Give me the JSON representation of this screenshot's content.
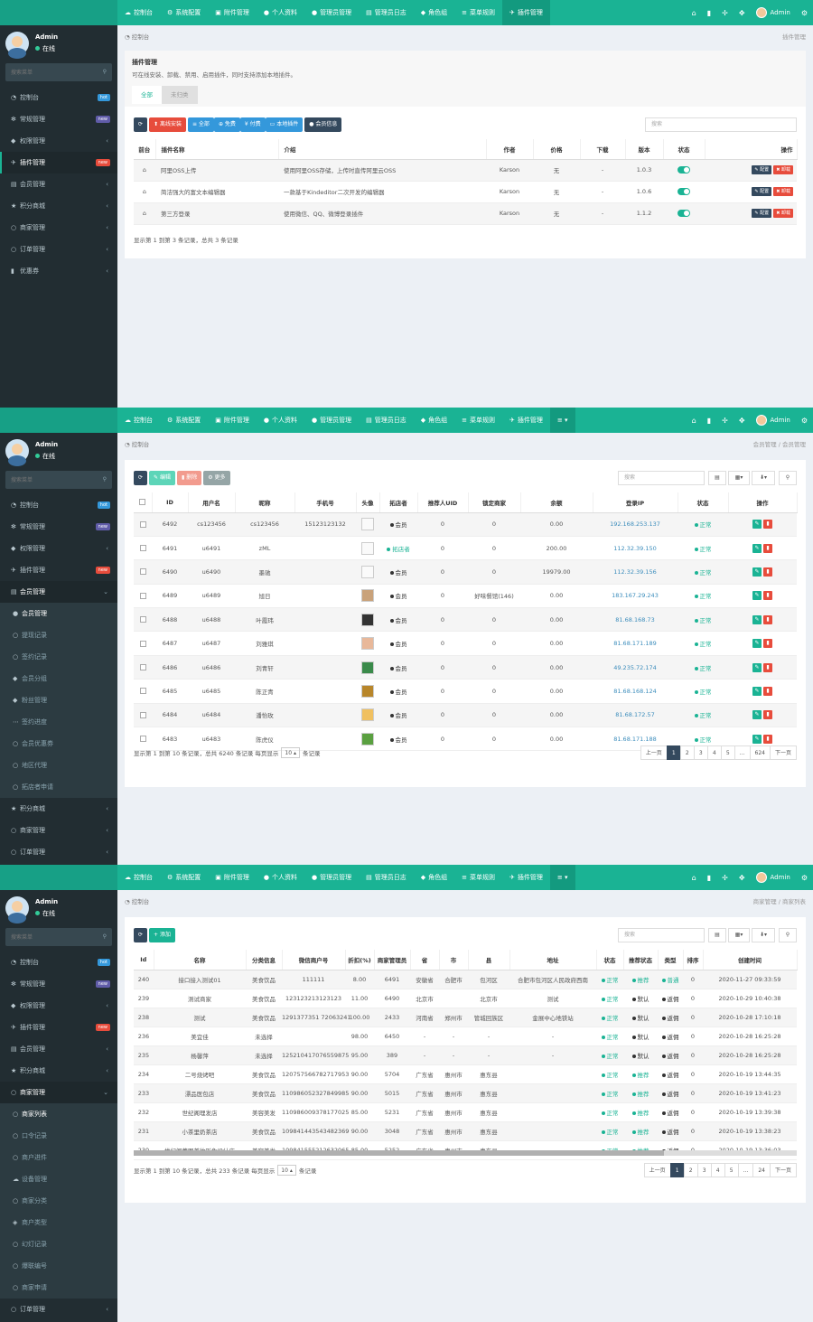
{
  "topnav": [
    {
      "icon": "☁",
      "label": "控制台"
    },
    {
      "icon": "⚙",
      "label": "系统配置"
    },
    {
      "icon": "▣",
      "label": "附件管理"
    },
    {
      "icon": "●",
      "label": "个人资料"
    },
    {
      "icon": "●",
      "label": "管理员管理"
    },
    {
      "icon": "▤",
      "label": "管理员日志"
    },
    {
      "icon": "◆",
      "label": "角色组"
    },
    {
      "icon": "≡",
      "label": "菜单规则"
    },
    {
      "icon": "✈",
      "label": "插件管理"
    }
  ],
  "user": {
    "name": "Admin",
    "status": "在线"
  },
  "sidebar_search_placeholder": "搜索菜单",
  "menu": {
    "console": {
      "label": "控制台",
      "badge": "hot"
    },
    "general": {
      "label": "常规管理",
      "badge": "new"
    },
    "auth": {
      "label": "权限管理"
    },
    "addon": {
      "label": "插件管理",
      "badge": "new"
    },
    "member": {
      "label": "会员管理"
    },
    "points": {
      "label": "积分商城"
    },
    "merchant": {
      "label": "商家管理"
    },
    "order": {
      "label": "订单管理"
    },
    "coupon": {
      "label": "优惠券"
    }
  },
  "member_sub": [
    "会员管理",
    "提现记录",
    "签约记录",
    "会员分组",
    "粉丝管理",
    "签约进度",
    "会员优惠券",
    "地区代理",
    "拓店者申请"
  ],
  "merchant_sub": [
    "商家列表",
    "口令记录",
    "商户进件",
    "设备管理",
    "商家分类",
    "商户类型",
    "幻灯记录",
    "爆联编号",
    "商家申请"
  ],
  "screen1": {
    "breadcrumb": "控制台",
    "breadcrumb_right": "插件管理",
    "title": "插件管理",
    "desc": "可在线安装、卸载、禁用、启用插件，同时支持添加本地插件。",
    "tabs": [
      "全部",
      "未归类"
    ],
    "toolbar": {
      "install": "离线安装",
      "all": "全部",
      "free": "免费",
      "paid": "付费",
      "local": "本地插件",
      "member": "会员信息"
    },
    "search_placeholder": "搜索",
    "headers": [
      "前台",
      "插件名称",
      "介绍",
      "作者",
      "价格",
      "下载",
      "版本",
      "状态",
      "操作"
    ],
    "rows": [
      {
        "name": "阿里OSS上传",
        "intro": "使用阿里OSS存储，上传时直传阿里云OSS",
        "author": "Karson",
        "price": "无",
        "download": "-",
        "version": "1.0.3"
      },
      {
        "name": "简洁强大的富文本编辑器",
        "intro": "一款基于Kindeditor二次开发的编辑器",
        "author": "Karson",
        "price": "无",
        "download": "-",
        "version": "1.0.6"
      },
      {
        "name": "第三方登录",
        "intro": "使用微信、QQ、微博登录插件",
        "author": "Karson",
        "price": "无",
        "download": "-",
        "version": "1.1.2"
      }
    ],
    "config": "配置",
    "uninstall": "卸载",
    "footer": "显示第 1 到第 3 条记录，总共 3 条记录"
  },
  "screen2": {
    "breadcrumb": "控制台",
    "breadcrumb_right": "会员管理 / 会员管理",
    "toolbar": {
      "edit": "编辑",
      "delete": "删除",
      "more": "更多"
    },
    "search_placeholder": "搜索",
    "headers": [
      "",
      "ID",
      "用户名",
      "昵称",
      "手机号",
      "头像",
      "拓店者",
      "推荐人UID",
      "锁定商家",
      "余额",
      "登录IP",
      "状态",
      "操作"
    ],
    "rows": [
      {
        "id": "6492",
        "username": "cs123456",
        "nickname": "cs123456",
        "phone": "15123123132",
        "role": "会员",
        "ref": "0",
        "shop": "0",
        "balance": "0.00",
        "ip": "192.168.253.137",
        "status": "正常"
      },
      {
        "id": "6491",
        "username": "u6491",
        "nickname": "zML",
        "phone": "",
        "role": "拓店者",
        "ref": "0",
        "shop": "0",
        "balance": "200.00",
        "ip": "112.32.39.150",
        "status": "正常"
      },
      {
        "id": "6490",
        "username": "u6490",
        "nickname": "墨驰",
        "phone": "",
        "role": "会员",
        "ref": "0",
        "shop": "0",
        "balance": "19979.00",
        "ip": "112.32.39.156",
        "status": "正常"
      },
      {
        "id": "6489",
        "username": "u6489",
        "nickname": "旭日",
        "phone": "",
        "role": "会员",
        "ref": "0",
        "shop": "好味餐馆(146)",
        "balance": "0.00",
        "ip": "183.167.29.243",
        "status": "正常"
      },
      {
        "id": "6488",
        "username": "u6488",
        "nickname": "叶霞玮",
        "phone": "",
        "role": "会员",
        "ref": "0",
        "shop": "0",
        "balance": "0.00",
        "ip": "81.68.168.73",
        "status": "正常"
      },
      {
        "id": "6487",
        "username": "u6487",
        "nickname": "刘雅琪",
        "phone": "",
        "role": "会员",
        "ref": "0",
        "shop": "0",
        "balance": "0.00",
        "ip": "81.68.171.189",
        "status": "正常"
      },
      {
        "id": "6486",
        "username": "u6486",
        "nickname": "刘青轩",
        "phone": "",
        "role": "会员",
        "ref": "0",
        "shop": "0",
        "balance": "0.00",
        "ip": "49.235.72.174",
        "status": "正常"
      },
      {
        "id": "6485",
        "username": "u6485",
        "nickname": "陈正青",
        "phone": "",
        "role": "会员",
        "ref": "0",
        "shop": "0",
        "balance": "0.00",
        "ip": "81.68.168.124",
        "status": "正常"
      },
      {
        "id": "6484",
        "username": "u6484",
        "nickname": "潘怡玫",
        "phone": "",
        "role": "会员",
        "ref": "0",
        "shop": "0",
        "balance": "0.00",
        "ip": "81.68.172.57",
        "status": "正常"
      },
      {
        "id": "6483",
        "username": "u6483",
        "nickname": "陈虎仪",
        "phone": "",
        "role": "会员",
        "ref": "0",
        "shop": "0",
        "balance": "0.00",
        "ip": "81.68.171.188",
        "status": "正常"
      }
    ],
    "footer_pre": "显示第 1 到第 10 条记录，总共 6240 条记录 每页显示",
    "page_size": "10",
    "footer_post": "条记录",
    "pager": [
      "上一页",
      "1",
      "2",
      "3",
      "4",
      "5",
      "...",
      "624",
      "下一页"
    ]
  },
  "screen3": {
    "breadcrumb": "控制台",
    "breadcrumb_right": "商家管理 / 商家列表",
    "toolbar": {
      "add": "添加"
    },
    "search_placeholder": "搜索",
    "headers": [
      "Id",
      "名称",
      "分类信息",
      "微信商户号",
      "折扣(%)",
      "商家管理员",
      "省",
      "市",
      "县",
      "地址",
      "状态",
      "推荐状态",
      "类型",
      "排序",
      "创建时间"
    ],
    "rows": [
      {
        "id": "240",
        "name": "接口接入测试01",
        "cat": "美食饮品",
        "mch": "111111",
        "disc": "8.00",
        "admin": "6491",
        "prov": "安徽省",
        "city": "合肥市",
        "county": "包河区",
        "addr": "合肥市包河区人民政府西南",
        "st": "正常",
        "rec": "推荐",
        "type": "普通",
        "sort": "0",
        "time": "2020-11-27 09:33:59"
      },
      {
        "id": "239",
        "name": "测试商家",
        "cat": "美食饮品",
        "mch": "123123213123123",
        "disc": "11.00",
        "admin": "6490",
        "prov": "北京市",
        "city": "",
        "county": "北京市",
        "addr": "测试",
        "st": "正常",
        "rec": "默认",
        "type": "返佣",
        "sort": "0",
        "time": "2020-10-29 10:40:38"
      },
      {
        "id": "238",
        "name": "测试",
        "cat": "美食饮品",
        "mch": "1291377351 72063241",
        "disc": "100.00",
        "admin": "2433",
        "prov": "河南省",
        "city": "郑州市",
        "county": "管城回族区",
        "addr": "金展中心地铁站",
        "st": "正常",
        "rec": "默认",
        "type": "返佣",
        "sort": "0",
        "time": "2020-10-28 17:10:18"
      },
      {
        "id": "236",
        "name": "美宜佳",
        "cat": "未选择",
        "mch": "",
        "disc": "98.00",
        "admin": "6450",
        "prov": "-",
        "city": "-",
        "county": "-",
        "addr": "-",
        "st": "正常",
        "rec": "默认",
        "type": "返佣",
        "sort": "0",
        "time": "2020-10-28 16:25:28"
      },
      {
        "id": "235",
        "name": "杨馨萍",
        "cat": "未选择",
        "mch": "125210417076559875",
        "disc": "95.00",
        "admin": "389",
        "prov": "-",
        "city": "-",
        "county": "-",
        "addr": "-",
        "st": "正常",
        "rec": "默认",
        "type": "返佣",
        "sort": "0",
        "time": "2020-10-28 16:25:28"
      },
      {
        "id": "234",
        "name": "二号烧烤吧",
        "cat": "美食饮品",
        "mch": "120757566782717953",
        "disc": "90.00",
        "admin": "5704",
        "prov": "广东省",
        "city": "惠州市",
        "county": "惠东县",
        "addr": "",
        "st": "正常",
        "rec": "推荐",
        "type": "返佣",
        "sort": "0",
        "time": "2020-10-19 13:44:35"
      },
      {
        "id": "233",
        "name": "漂品医包店",
        "cat": "美食饮品",
        "mch": "110986052327849985",
        "disc": "90.00",
        "admin": "5015",
        "prov": "广东省",
        "city": "惠州市",
        "county": "惠东县",
        "addr": "",
        "st": "正常",
        "rec": "推荐",
        "type": "返佣",
        "sort": "0",
        "time": "2020-10-19 13:41:23"
      },
      {
        "id": "232",
        "name": "世纪阁理发店",
        "cat": "美容美发",
        "mch": "110986009378177025",
        "disc": "85.00",
        "admin": "5231",
        "prov": "广东省",
        "city": "惠州市",
        "county": "惠东县",
        "addr": "",
        "st": "正常",
        "rec": "推荐",
        "type": "返佣",
        "sort": "0",
        "time": "2020-10-19 13:39:38"
      },
      {
        "id": "231",
        "name": "小茶里奶茶店",
        "cat": "美食饮品",
        "mch": "109841443543482369",
        "disc": "90.00",
        "admin": "3048",
        "prov": "广东省",
        "city": "惠州市",
        "county": "惠东县",
        "addr": "",
        "st": "正常",
        "rec": "推荐",
        "type": "返佣",
        "sort": "0",
        "time": "2020-10-19 13:38:23"
      },
      {
        "id": "230",
        "name": "世纪阁董图美妆形象设计店",
        "cat": "美容美发",
        "mch": "109841555212632065",
        "disc": "85.00",
        "admin": "5252",
        "prov": "广东省",
        "city": "惠州市",
        "county": "惠东县",
        "addr": "",
        "st": "正常",
        "rec": "推荐",
        "type": "返佣",
        "sort": "0",
        "time": "2020-10-19 13:36:03"
      }
    ],
    "footer_pre": "显示第 1 到第 10 条记录，总共 233 条记录 每页显示",
    "page_size": "10",
    "footer_post": "条记录",
    "pager": [
      "上一页",
      "1",
      "2",
      "3",
      "4",
      "5",
      "...",
      "24",
      "下一页"
    ]
  },
  "colors": {
    "accent": "#1ab394",
    "sidebar": "#222d32",
    "danger": "#e74c3c",
    "info": "#3498db"
  }
}
